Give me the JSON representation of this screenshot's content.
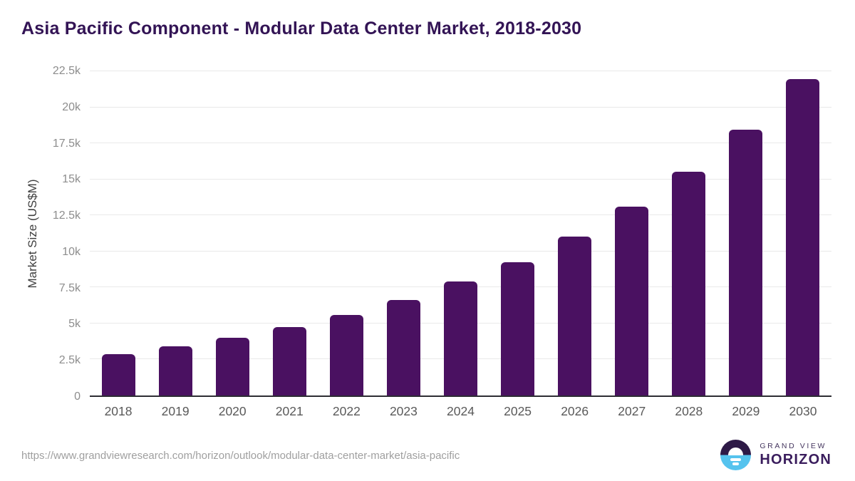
{
  "chart_data": {
    "type": "bar",
    "title": "Asia Pacific Component - Modular Data Center Market, 2018-2030",
    "xlabel": "",
    "ylabel": "Market Size (US$M)",
    "categories": [
      "2018",
      "2019",
      "2020",
      "2021",
      "2022",
      "2023",
      "2024",
      "2025",
      "2026",
      "2027",
      "2028",
      "2029",
      "2030"
    ],
    "values": [
      2850,
      3400,
      4000,
      4750,
      5600,
      6650,
      7900,
      9250,
      11050,
      13100,
      15550,
      18450,
      21950
    ],
    "ylim": [
      0,
      22500
    ],
    "yticks": [
      {
        "label": "0",
        "value": 0
      },
      {
        "label": "2.5k",
        "value": 2500
      },
      {
        "label": "5k",
        "value": 5000
      },
      {
        "label": "7.5k",
        "value": 7500
      },
      {
        "label": "10k",
        "value": 10000
      },
      {
        "label": "12.5k",
        "value": 12500
      },
      {
        "label": "15k",
        "value": 15000
      },
      {
        "label": "17.5k",
        "value": 17500
      },
      {
        "label": "20k",
        "value": 20000
      },
      {
        "label": "22.5k",
        "value": 22500
      }
    ],
    "grid": true,
    "legend": false,
    "bar_color": "#4a1161"
  },
  "footer": {
    "source_url": "https://www.grandviewresearch.com/horizon/outlook/modular-data-center-market/asia-pacific",
    "logo_top": "GRAND VIEW",
    "logo_bottom": "HORIZON"
  },
  "colors": {
    "bar": "#4a1161",
    "title": "#331455",
    "grid": "#e9e9e9",
    "axis": "#2d2d33",
    "tick_label": "#8d8d8d",
    "x_label": "#595959",
    "axis_title": "#3f3f3f",
    "url": "#9f9f9f",
    "logo_dark": "#2e1a47",
    "logo_blue": "#55c3ee",
    "logo_text": "#3a1d5d",
    "logo_subtext": "#44355e"
  }
}
